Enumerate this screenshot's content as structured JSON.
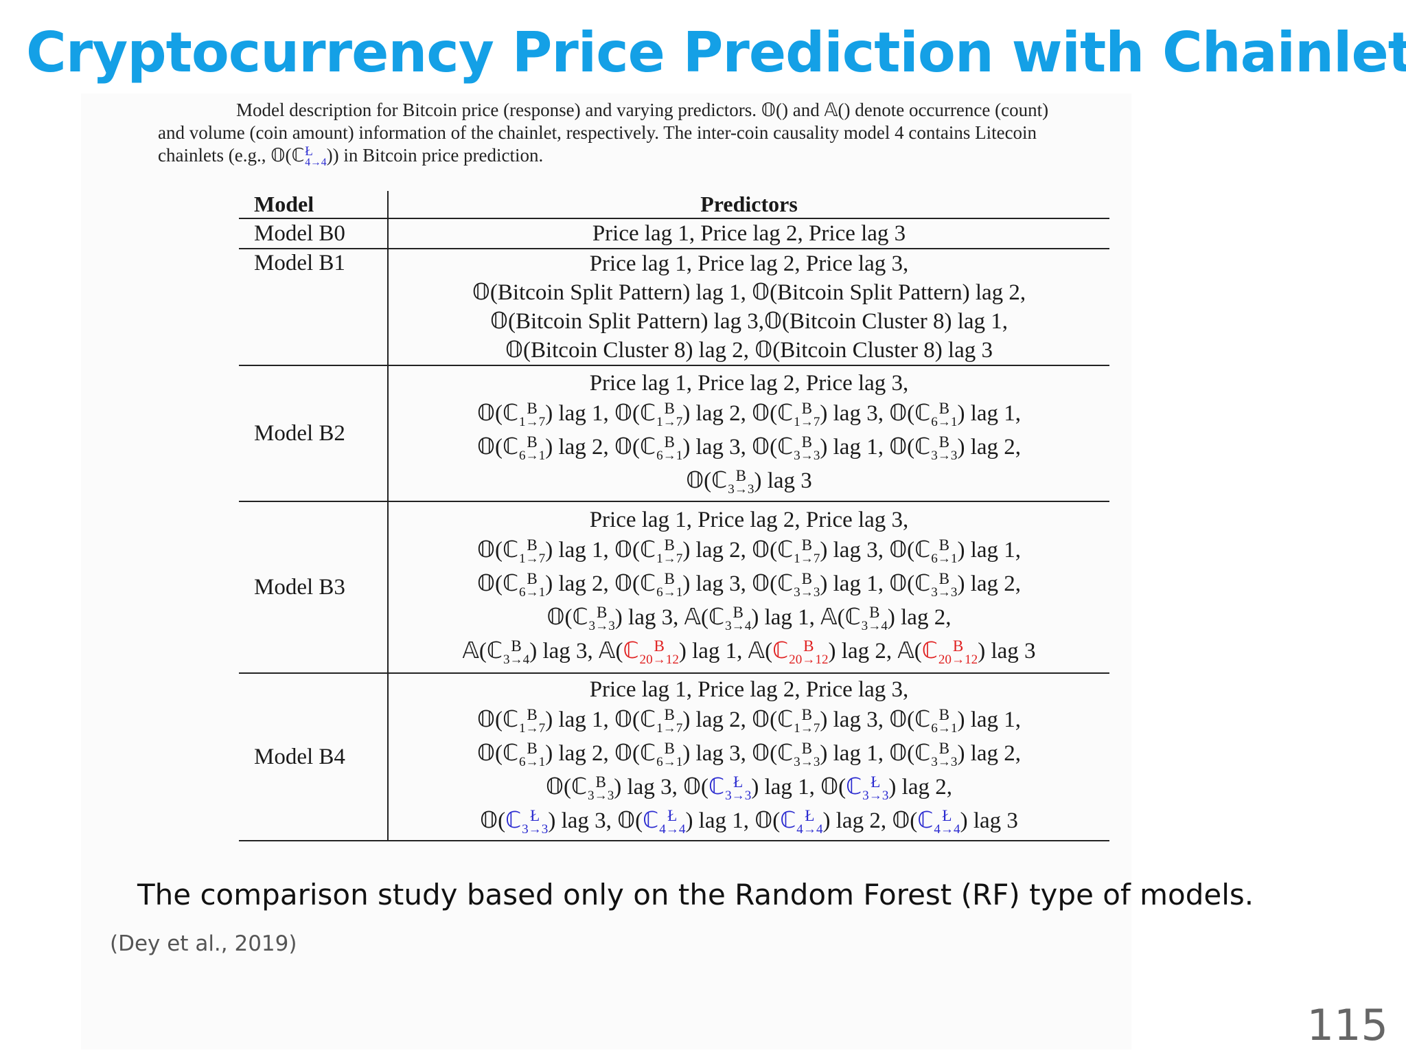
{
  "slide": {
    "title": "Cryptocurrency Price Prediction with Chainlets",
    "bottom_note": "The comparison study based only on the Random Forest (RF) type of models.",
    "citation": "(Dey et al., 2019)",
    "page_number": "115"
  },
  "caption": {
    "line1": "Model description for Bitcoin price (response) and varying predictors. 𝕆() and 𝔸() denote occurrence (count)",
    "line2": "and volume (coin amount) information of the chainlet, respectively.  The inter-coin causality model 4 contains Litecoin",
    "line3_prefix": "chainlets (e.g., 𝕆(",
    "line3_symbol": "ℂ",
    "line3_sup": "Ł",
    "line3_sub": "4→4",
    "line3_suffix": ")) in Bitcoin price prediction."
  },
  "table": {
    "headers": {
      "model": "Model",
      "predictors": "Predictors"
    },
    "rows": [
      {
        "model": "Model B0",
        "lines": [
          "Price lag 1, Price lag 2, Price lag 3"
        ]
      },
      {
        "model": "Model B1",
        "lines": [
          "Price lag 1, Price lag 2, Price lag 3,",
          "𝕆(Bitcoin Split Pattern) lag 1, 𝕆(Bitcoin Split Pattern) lag 2,",
          "𝕆(Bitcoin Split Pattern) lag 3,𝕆(Bitcoin Cluster 8) lag 1,",
          "𝕆(Bitcoin Cluster 8) lag 2, 𝕆(Bitcoin Cluster 8) lag 3"
        ]
      },
      {
        "model": "Model B2",
        "lines": [
          "Price lag 1, Price lag 2, Price lag 3,",
          "𝕆(ℂ^B_1→7) lag 1, 𝕆(ℂ^B_1→7) lag 2, 𝕆(ℂ^B_1→7) lag 3, 𝕆(ℂ^B_6→1) lag 1,",
          "𝕆(ℂ^B_6→1) lag 2, 𝕆(ℂ^B_6→1) lag 3, 𝕆(ℂ^B_3→3) lag 1, 𝕆(ℂ^B_3→3) lag 2,",
          "𝕆(ℂ^B_3→3) lag 3"
        ]
      },
      {
        "model": "Model B3",
        "lines": [
          "Price lag 1, Price lag 2, Price lag 3,",
          "𝕆(ℂ^B_1→7) lag 1, 𝕆(ℂ^B_1→7) lag 2, 𝕆(ℂ^B_1→7) lag 3, 𝕆(ℂ^B_6→1) lag 1,",
          "𝕆(ℂ^B_6→1) lag 2, 𝕆(ℂ^B_6→1) lag 3, 𝕆(ℂ^B_3→3) lag 1, 𝕆(ℂ^B_3→3) lag 2,",
          "𝕆(ℂ^B_3→3) lag 3, 𝔸(ℂ^B_3→4) lag 1, 𝔸(ℂ^B_3→4) lag 2,",
          "𝔸(ℂ^B_3→4) lag 3, 𝔸(ℂ^B_20→12) lag 1, 𝔸(ℂ^B_20→12) lag 2, 𝔸(ℂ^B_20→12) lag 3"
        ]
      },
      {
        "model": "Model B4",
        "lines": [
          "Price lag 1, Price lag 2, Price lag 3,",
          "𝕆(ℂ^B_1→7) lag 1, 𝕆(ℂ^B_1→7) lag 2, 𝕆(ℂ^B_1→7) lag 3, 𝕆(ℂ^B_6→1) lag 1,",
          "𝕆(ℂ^B_6→1) lag 2, 𝕆(ℂ^B_6→1) lag 3, 𝕆(ℂ^B_3→3) lag 1, 𝕆(ℂ^B_3→3) lag 2,",
          "𝕆(ℂ^B_3→3) lag 3, 𝕆(ℂ^Ł_3→3) lag 1, 𝕆(ℂ^Ł_3→3) lag 2,",
          "𝕆(ℂ^Ł_3→3) lag 3, 𝕆(ℂ^Ł_4→4) lag 1, 𝕆(ℂ^Ł_4→4) lag 2, 𝕆(ℂ^Ł_4→4) lag 3"
        ]
      }
    ]
  },
  "colors": {
    "title": "#14a0e6",
    "red_chainlet": "#e02020",
    "litecoin_chainlet": "#2a2ad0"
  }
}
